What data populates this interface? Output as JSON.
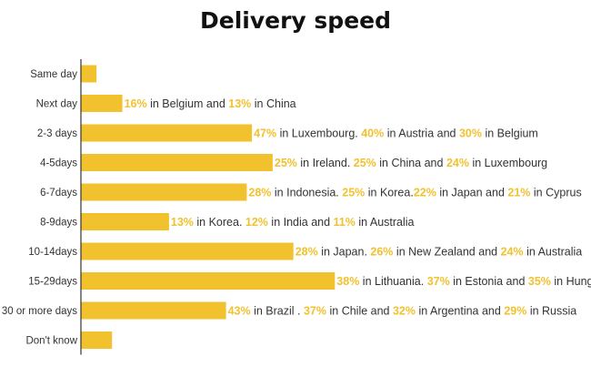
{
  "title": "Delivery speed",
  "colors": {
    "bar": "#f2c12e",
    "highlight": "#f2c12e",
    "text": "#333333",
    "axis": "#333333"
  },
  "chart_data": {
    "type": "bar",
    "orientation": "horizontal",
    "title": "Delivery speed",
    "xlabel": "",
    "ylabel": "",
    "grid": false,
    "categories": [
      "Same day",
      "Next day",
      "2-3 days",
      "4-5days",
      "6-7days",
      "8-9days",
      "10-14days",
      "15-29days",
      "30 or more days",
      "Don't know"
    ],
    "values": [
      3,
      8,
      33,
      37,
      32,
      17,
      41,
      49,
      28,
      6
    ],
    "xlim": [
      0,
      100
    ],
    "annotations": [
      [],
      [
        [
          "16%",
          true
        ],
        [
          " in Belgium and ",
          false
        ],
        [
          "13%",
          true
        ],
        [
          " in China",
          false
        ]
      ],
      [
        [
          "47%",
          true
        ],
        [
          " in Luxembourg. ",
          false
        ],
        [
          "40%",
          true
        ],
        [
          " in Austria and ",
          false
        ],
        [
          "30%",
          true
        ],
        [
          "  in Belgium",
          false
        ]
      ],
      [
        [
          "25%",
          true
        ],
        [
          " in Ireland. ",
          false
        ],
        [
          "25%",
          true
        ],
        [
          " in China and  ",
          false
        ],
        [
          "24%",
          true
        ],
        [
          " in Luxembourg",
          false
        ]
      ],
      [
        [
          "28%",
          true
        ],
        [
          " in Indonesia. ",
          false
        ],
        [
          "25%",
          true
        ],
        [
          " in Korea.",
          false
        ],
        [
          "22%",
          true
        ],
        [
          " in Japan and ",
          false
        ],
        [
          "21%",
          true
        ],
        [
          "  in Cyprus",
          false
        ]
      ],
      [
        [
          "13%",
          true
        ],
        [
          " in Korea. ",
          false
        ],
        [
          "12%",
          true
        ],
        [
          " in India and ",
          false
        ],
        [
          "11%",
          true
        ],
        [
          " in Australia",
          false
        ]
      ],
      [
        [
          "28%",
          true
        ],
        [
          " in Japan. ",
          false
        ],
        [
          "26%",
          true
        ],
        [
          " in New Zealand and ",
          false
        ],
        [
          "24%",
          true
        ],
        [
          " in Australia",
          false
        ]
      ],
      [
        [
          "38%",
          true
        ],
        [
          " in Lithuania. ",
          false
        ],
        [
          "37%",
          true
        ],
        [
          " in Estonia and  ",
          false
        ],
        [
          "35%",
          true
        ],
        [
          " in Hungary",
          false
        ]
      ],
      [
        [
          "43%",
          true
        ],
        [
          " in Brazil . ",
          false
        ],
        [
          "37%",
          true
        ],
        [
          " in Chile and ",
          false
        ],
        [
          "32%",
          true
        ],
        [
          " in Argentina and ",
          false
        ],
        [
          "29%",
          true
        ],
        [
          "  in Russia",
          false
        ]
      ],
      []
    ]
  }
}
